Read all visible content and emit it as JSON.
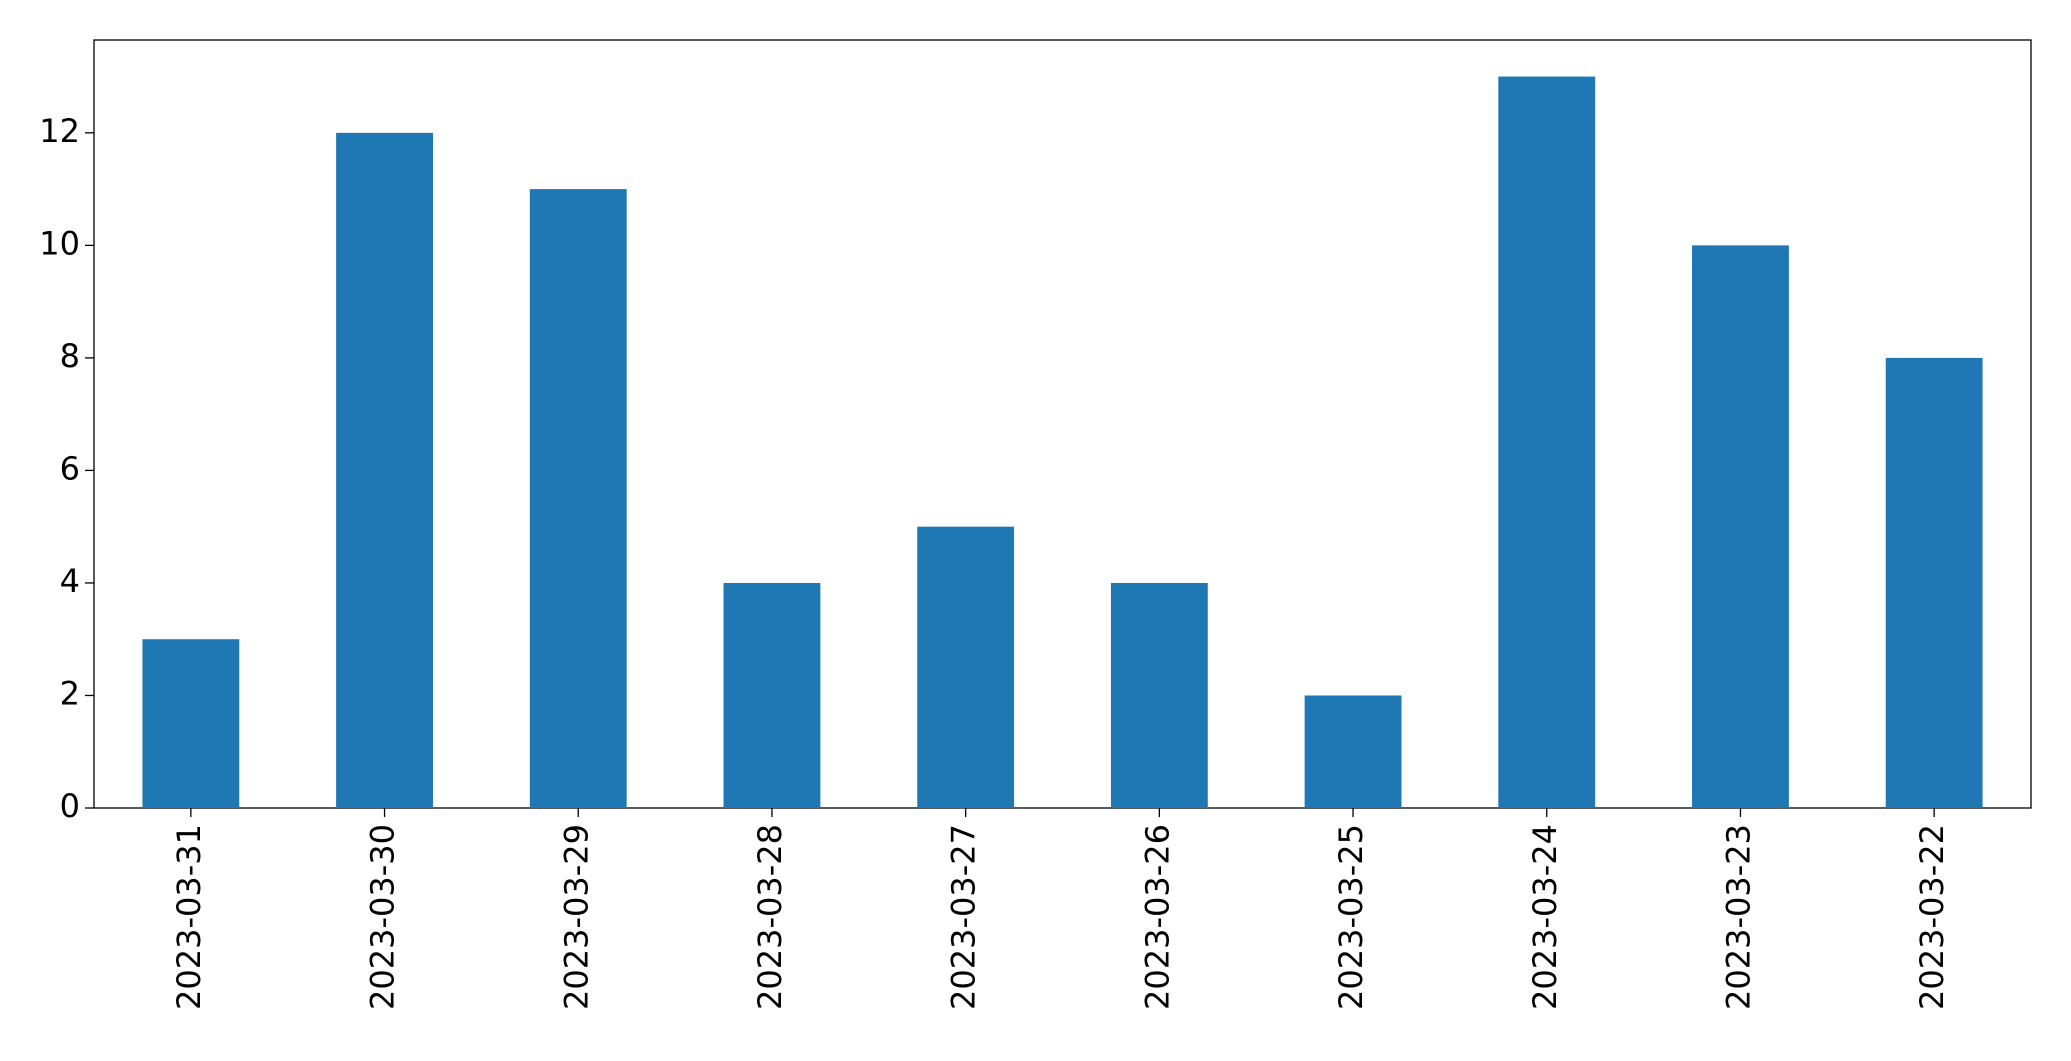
{
  "chart_data": {
    "type": "bar",
    "categories": [
      "2023-03-31",
      "2023-03-30",
      "2023-03-29",
      "2023-03-28",
      "2023-03-27",
      "2023-03-26",
      "2023-03-25",
      "2023-03-24",
      "2023-03-23",
      "2023-03-22"
    ],
    "values": [
      3,
      12,
      11,
      4,
      5,
      4,
      2,
      13,
      10,
      8
    ],
    "color": "#1f77b4",
    "ylim": [
      0,
      13.65
    ],
    "yticks": [
      0,
      2,
      4,
      6,
      8,
      10,
      12
    ],
    "grid": false
  }
}
